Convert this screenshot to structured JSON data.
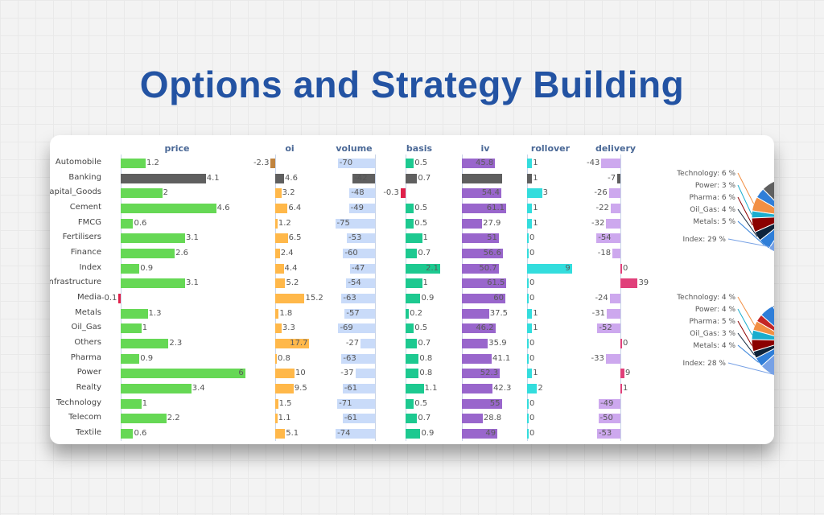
{
  "title": "Options and Strategy Building",
  "columns": [
    {
      "key": "price",
      "label": "price",
      "color": "#66d855",
      "neg_color": "#e0204a"
    },
    {
      "key": "oi",
      "label": "oi",
      "color": "#ffb84a",
      "neg_color": "#c0843f"
    },
    {
      "key": "volume",
      "label": "volume",
      "color": "#c9dbf9",
      "neg_color": "#c9dbf9"
    },
    {
      "key": "basis",
      "label": "basis",
      "color": "#1dc990",
      "neg_color": "#e0204a"
    },
    {
      "key": "iv",
      "label": "iv",
      "color": "#9966cc",
      "neg_color": "#9966cc"
    },
    {
      "key": "rollover",
      "label": "rollover",
      "color": "#33dddd",
      "neg_color": "#33dddd"
    },
    {
      "key": "delivery",
      "label": "delivery",
      "color": "#e0407a",
      "neg_color": "#cda8ee"
    }
  ],
  "highlight_row": "Banking",
  "highlight_color": "#5f5f5f",
  "rows": [
    {
      "name": "Automobile",
      "price": 1.2,
      "oi": -2.3,
      "volume": -70,
      "basis": 0.5,
      "iv": 45.8,
      "rollover": 1,
      "delivery": -43
    },
    {
      "name": "Banking",
      "price": 4.1,
      "oi": 4.6,
      "volume": -42,
      "basis": 0.7,
      "iv": null,
      "rollover": 1,
      "delivery": -7
    },
    {
      "name": "Capital_Goods",
      "price": 2,
      "oi": 3.2,
      "volume": -48,
      "basis": -0.3,
      "iv": 54.4,
      "rollover": 3,
      "delivery": -26
    },
    {
      "name": "Cement",
      "price": 4.6,
      "oi": 6.4,
      "volume": -49,
      "basis": 0.5,
      "iv": 61.1,
      "rollover": 1,
      "delivery": -22
    },
    {
      "name": "FMCG",
      "price": 0.6,
      "oi": 1.2,
      "volume": -75,
      "basis": 0.5,
      "iv": 27.9,
      "rollover": 1,
      "delivery": -32
    },
    {
      "name": "Fertilisers",
      "price": 3.1,
      "oi": 6.5,
      "volume": -53,
      "basis": 1,
      "iv": 51,
      "rollover": 0,
      "delivery": -54
    },
    {
      "name": "Finance",
      "price": 2.6,
      "oi": 2.4,
      "volume": -60,
      "basis": 0.7,
      "iv": 56.6,
      "rollover": 0,
      "delivery": -18
    },
    {
      "name": "Index",
      "price": 0.9,
      "oi": 4.4,
      "volume": -47,
      "basis": 2.1,
      "iv": 50.7,
      "rollover": 9,
      "delivery": 0
    },
    {
      "name": "Infrastructure",
      "price": 3.1,
      "oi": 5.2,
      "volume": -54,
      "basis": 1,
      "iv": 61.5,
      "rollover": 0,
      "delivery": 39
    },
    {
      "name": "Media",
      "price": -0.1,
      "oi": 15.2,
      "volume": -63,
      "basis": 0.9,
      "iv": 60,
      "rollover": 0,
      "delivery": -24
    },
    {
      "name": "Metals",
      "price": 1.3,
      "oi": 1.8,
      "volume": -57,
      "basis": 0.2,
      "iv": 37.5,
      "rollover": 1,
      "delivery": -31
    },
    {
      "name": "Oil_Gas",
      "price": 1,
      "oi": 3.3,
      "volume": -69,
      "basis": 0.5,
      "iv": 46.2,
      "rollover": 1,
      "delivery": -52
    },
    {
      "name": "Others",
      "price": 2.3,
      "oi": 17.7,
      "volume": -27,
      "basis": 0.7,
      "iv": 35.9,
      "rollover": 0,
      "delivery": 0
    },
    {
      "name": "Pharma",
      "price": 0.9,
      "oi": 0.8,
      "volume": -63,
      "basis": 0.8,
      "iv": 41.1,
      "rollover": 0,
      "delivery": -33
    },
    {
      "name": "Power",
      "price": 6,
      "oi": 10,
      "volume": -37,
      "basis": 0.8,
      "iv": 52.3,
      "rollover": 1,
      "delivery": 9
    },
    {
      "name": "Realty",
      "price": 3.4,
      "oi": 9.5,
      "volume": -61,
      "basis": 1.1,
      "iv": 42.3,
      "rollover": 2,
      "delivery": 1
    },
    {
      "name": "Technology",
      "price": 1,
      "oi": 1.5,
      "volume": -71,
      "basis": 0.5,
      "iv": 55,
      "rollover": 0,
      "delivery": -49
    },
    {
      "name": "Telecom",
      "price": 2.2,
      "oi": 1.1,
      "volume": -61,
      "basis": 0.7,
      "iv": 28.8,
      "rollover": 0,
      "delivery": -50
    },
    {
      "name": "Textile",
      "price": 0.6,
      "oi": 5.1,
      "volume": -74,
      "basis": 0.9,
      "iv": 49,
      "rollover": 0,
      "delivery": -53
    }
  ],
  "pies": [
    {
      "slices": [
        {
          "label": "Technology: 6 %",
          "pct": 6,
          "color": "#f28f43"
        },
        {
          "label": "Power: 3 %",
          "pct": 3,
          "color": "#1aadce"
        },
        {
          "label": "Pharma: 6 %",
          "pct": 6,
          "color": "#8b0000"
        },
        {
          "label": "Oil_Gas: 4 %",
          "pct": 4,
          "color": "#0d233a"
        },
        {
          "label": "Metals: 5 %",
          "pct": 5,
          "color": "#2f7ed8"
        },
        {
          "label": "Index: 29 %",
          "pct": 29,
          "color": "#77a1e5"
        }
      ]
    },
    {
      "slices": [
        {
          "label": "Technology: 4 %",
          "pct": 4,
          "color": "#f28f43"
        },
        {
          "label": "Power: 4 %",
          "pct": 4,
          "color": "#1aadce"
        },
        {
          "label": "Pharma: 5 %",
          "pct": 5,
          "color": "#8b0000"
        },
        {
          "label": "Oil_Gas: 3 %",
          "pct": 3,
          "color": "#0d233a"
        },
        {
          "label": "Metals: 4 %",
          "pct": 4,
          "color": "#2f7ed8"
        },
        {
          "label": "Index: 28 %",
          "pct": 28,
          "color": "#77a1e5"
        }
      ]
    }
  ]
}
